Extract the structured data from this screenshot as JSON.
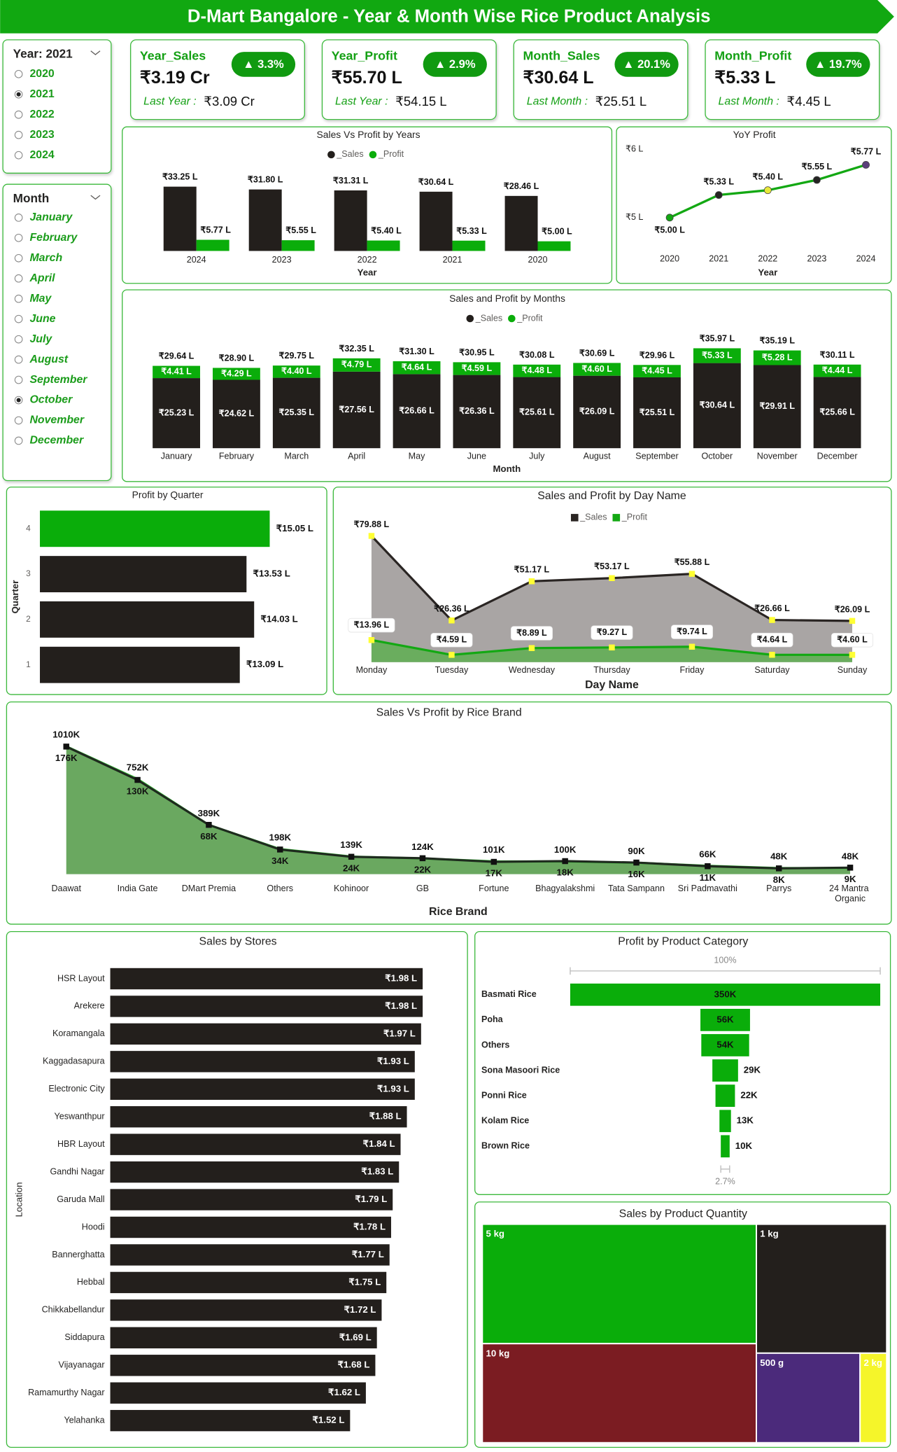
{
  "header": {
    "title": "D-Mart Bangalore - Year & Month Wise Rice Product Analysis"
  },
  "slicers": [
    {
      "title": "Year: 2021",
      "options": [
        "2020",
        "2021",
        "2022",
        "2023",
        "2024"
      ],
      "selected": 1
    },
    {
      "title": "Month",
      "options": [
        "January",
        "February",
        "March",
        "April",
        "May",
        "June",
        "July",
        "August",
        "September",
        "October",
        "November",
        "December"
      ],
      "selected": 9
    }
  ],
  "kpis": [
    {
      "title": "Year_Sales",
      "value": "₹3.19 Cr",
      "change": "▲ 3.3%",
      "compare_label": "Last Year :",
      "compare_value": "₹3.09 Cr"
    },
    {
      "title": "Year_Profit",
      "value": "₹55.70 L",
      "change": "▲ 2.9%",
      "compare_label": "Last Year :",
      "compare_value": "₹54.15 L"
    },
    {
      "title": "Month_Sales",
      "value": "₹30.64 L",
      "change": "▲ 20.1%",
      "compare_label": "Last Month :",
      "compare_value": "₹25.51 L"
    },
    {
      "title": "Month_Profit",
      "value": "₹5.33 L",
      "change": "▲ 19.7%",
      "compare_label": "Last Month :",
      "compare_value": "₹4.45 L"
    }
  ],
  "chart_data": [
    {
      "type": "bar",
      "title": "Sales Vs Profit by Years",
      "x_label": "Year",
      "categories": [
        "2024",
        "2023",
        "2022",
        "2021",
        "2020"
      ],
      "series": [
        {
          "name": "_Sales",
          "color": "#231f1c",
          "values": [
            33.25,
            31.8,
            31.31,
            30.64,
            28.46
          ],
          "value_labels": [
            "₹33.25 L",
            "₹31.80 L",
            "₹31.31 L",
            "₹30.64 L",
            "₹28.46 L"
          ]
        },
        {
          "name": "_Profit",
          "color": "#0aad0a",
          "values": [
            5.77,
            5.55,
            5.4,
            5.33,
            5.0
          ],
          "value_labels": [
            "₹5.77 L",
            "₹5.55 L",
            "₹5.40 L",
            "₹5.33 L",
            "₹5.00 L"
          ]
        }
      ],
      "ylim": [
        0,
        34
      ],
      "legend": "top",
      "legend_marker": "circle"
    },
    {
      "type": "line",
      "title": "YoY Profit",
      "x_label": "Year",
      "categories": [
        "2020",
        "2021",
        "2022",
        "2023",
        "2024"
      ],
      "values": [
        5.0,
        5.33,
        5.4,
        5.55,
        5.77
      ],
      "value_labels": [
        "₹5.00 L",
        "₹5.33 L",
        "₹5.40 L",
        "₹5.55 L",
        "₹5.77 L"
      ],
      "color": "#13a813",
      "marker_colors": [
        "#13a813",
        "#252423",
        "#e8e83a",
        "#252423",
        "#5a3f7a"
      ],
      "ylim": [
        4.5,
        6.0
      ],
      "yticks": [
        {
          "value": 6,
          "label": "₹6 L"
        },
        {
          "value": 5,
          "label": "₹5 L"
        }
      ]
    },
    {
      "type": "stacked_bar",
      "title": "Sales and Profit by Months",
      "x_label": "Month",
      "categories": [
        "January",
        "February",
        "March",
        "April",
        "May",
        "June",
        "July",
        "August",
        "September",
        "October",
        "November",
        "December"
      ],
      "series": [
        {
          "name": "_Sales",
          "color": "#231f1c",
          "values": [
            25.23,
            24.62,
            25.35,
            27.56,
            26.66,
            26.36,
            25.61,
            26.09,
            25.51,
            30.64,
            29.91,
            25.66
          ],
          "value_labels": [
            "₹25.23 L",
            "₹24.62 L",
            "₹25.35 L",
            "₹27.56 L",
            "₹26.66 L",
            "₹26.36 L",
            "₹25.61 L",
            "₹26.09 L",
            "₹25.51 L",
            "₹30.64 L",
            "₹29.91 L",
            "₹25.66 L"
          ]
        },
        {
          "name": "_Profit",
          "color": "#0aad0a",
          "values": [
            4.41,
            4.29,
            4.4,
            4.79,
            4.64,
            4.59,
            4.48,
            4.6,
            4.45,
            5.33,
            5.28,
            4.44
          ],
          "value_labels": [
            "₹4.41 L",
            "₹4.29 L",
            "₹4.40 L",
            "₹4.79 L",
            "₹4.64 L",
            "₹4.59 L",
            "₹4.48 L",
            "₹4.60 L",
            "₹4.45 L",
            "₹5.33 L",
            "₹5.28 L",
            "₹4.44 L"
          ]
        }
      ],
      "totals": [
        29.64,
        28.9,
        29.75,
        32.35,
        31.3,
        30.95,
        30.08,
        30.69,
        29.96,
        35.97,
        35.19,
        30.11
      ],
      "total_labels": [
        "₹29.64 L",
        "₹28.90 L",
        "₹29.75 L",
        "₹32.35 L",
        "₹31.30 L",
        "₹30.95 L",
        "₹30.08 L",
        "₹30.69 L",
        "₹29.96 L",
        "₹35.97 L",
        "₹35.19 L",
        "₹30.11 L"
      ],
      "ylim": [
        0,
        37
      ],
      "legend": "top",
      "legend_marker": "circle"
    },
    {
      "type": "hbar",
      "title": "Profit by Quarter",
      "y_label": "Quarter",
      "categories": [
        "4",
        "3",
        "2",
        "1"
      ],
      "values": [
        15.05,
        13.53,
        14.03,
        13.09
      ],
      "value_labels": [
        "₹15.05 L",
        "₹13.53 L",
        "₹14.03 L",
        "₹13.09 L"
      ],
      "colors": [
        "#0aad0a",
        "#231f1c",
        "#231f1c",
        "#231f1c"
      ],
      "xlim": [
        0,
        16
      ],
      "value_label_position": "outside"
    },
    {
      "type": "area",
      "title": "Sales and Profit by Day Name",
      "x_label": "Day Name",
      "categories": [
        "Monday",
        "Tuesday",
        "Wednesday",
        "Thursday",
        "Friday",
        "Saturday",
        "Sunday"
      ],
      "series": [
        {
          "name": "_Sales",
          "color": "#2a2523",
          "area_color": "#a9a5a4",
          "marker_color": "#ffff33",
          "label_position": "above",
          "values": [
            79.88,
            26.36,
            51.17,
            53.17,
            55.88,
            26.66,
            26.09
          ],
          "value_labels": [
            "₹79.88 L",
            "₹26.36 L",
            "₹51.17 L",
            "₹53.17 L",
            "₹55.88 L",
            "₹26.66 L",
            "₹26.09 L"
          ]
        },
        {
          "name": "_Profit",
          "color": "#13a813",
          "area_color": "#6aad5e",
          "marker_color": "#ffff33",
          "label_position": "box",
          "values": [
            13.96,
            4.59,
            8.89,
            9.27,
            9.74,
            4.64,
            4.6
          ],
          "value_labels": [
            "₹13.96 L",
            "₹4.59 L",
            "₹8.89 L",
            "₹9.27 L",
            "₹9.74 L",
            "₹4.64 L",
            "₹4.60 L"
          ]
        }
      ],
      "ylim": [
        0,
        85
      ],
      "legend": "top",
      "legend_marker": "square"
    },
    {
      "type": "area",
      "title": "Sales Vs Profit by Rice Brand",
      "x_label": "Rice Brand",
      "categories": [
        "Daawat",
        "India Gate",
        "DMart Premia",
        "Others",
        "Kohinoor",
        "GB",
        "Fortune",
        "Bhagyalakshmi",
        "Tata Sampann",
        "Sri Padmavathi",
        "Parrys",
        "24 Mantra Organic"
      ],
      "series": [
        {
          "color": "#3dbb3d",
          "area_color": "#6aa860",
          "label_position": "above",
          "values": [
            1010,
            752,
            389,
            198,
            139,
            124,
            101,
            100,
            90,
            66,
            48,
            48
          ],
          "value_labels": [
            "1010K",
            "752K",
            "389K",
            "198K",
            "139K",
            "124K",
            "101K",
            "100K",
            "90K",
            "66K",
            "48K",
            "48K"
          ]
        },
        {
          "color": "#1e2a1e",
          "marker_color": "#111111",
          "label_position": "below",
          "axis": "y2",
          "values": [
            176,
            130,
            68,
            34,
            24,
            22,
            17,
            18,
            16,
            11,
            8,
            9
          ],
          "value_labels": [
            "176K",
            "130K",
            "68K",
            "34K",
            "24K",
            "22K",
            "17K",
            "18K",
            "16K",
            "11K",
            "8K",
            "9K"
          ]
        }
      ],
      "ylim": [
        0,
        1100
      ],
      "y2lim": [
        0,
        192
      ]
    },
    {
      "type": "hbar",
      "title": "Sales by Stores",
      "y_label": "Location",
      "categories": [
        "HSR Layout",
        "Arekere",
        "Koramangala",
        "Kaggadasapura",
        "Electronic City",
        "Yeswanthpur",
        "HBR Layout",
        "Gandhi Nagar",
        "Garuda Mall",
        "Hoodi",
        "Bannerghatta",
        "Hebbal",
        "Chikkabellandur",
        "Siddapura",
        "Vijayanagar",
        "Ramamurthy Nagar",
        "Yelahanka"
      ],
      "values": [
        1.98,
        1.98,
        1.97,
        1.93,
        1.93,
        1.88,
        1.84,
        1.83,
        1.79,
        1.78,
        1.77,
        1.75,
        1.72,
        1.69,
        1.68,
        1.62,
        1.52
      ],
      "value_labels": [
        "₹1.98 L",
        "₹1.98 L",
        "₹1.97 L",
        "₹1.93 L",
        "₹1.93 L",
        "₹1.88 L",
        "₹1.84 L",
        "₹1.83 L",
        "₹1.79 L",
        "₹1.78 L",
        "₹1.77 L",
        "₹1.75 L",
        "₹1.72 L",
        "₹1.69 L",
        "₹1.68 L",
        "₹1.62 L",
        "₹1.52 L"
      ],
      "color": "#231f1c",
      "xlim": [
        0,
        2
      ],
      "value_label_position": "inside"
    },
    {
      "type": "funnel",
      "title": "Profit by Product Category",
      "categories": [
        "Basmati Rice",
        "Poha",
        "Others",
        "Sona Masoori Rice",
        "Ponni Rice",
        "Kolam Rice",
        "Brown Rice"
      ],
      "values": [
        350,
        56,
        54,
        29,
        22,
        13,
        10
      ],
      "value_labels": [
        "350K",
        "56K",
        "54K",
        "29K",
        "22K",
        "13K",
        "10K"
      ],
      "color": "#0aad0a",
      "top_label": "100%",
      "bottom_label": "2.7%"
    },
    {
      "type": "treemap",
      "title": "Sales by Product Quantity",
      "categories": [
        "5 kg",
        "10 kg",
        "1 kg",
        "500 g",
        "2 kg"
      ],
      "values": [
        37.0,
        30.7,
        19.0,
        10.5,
        2.7
      ],
      "colors": [
        "#0aad0a",
        "#7b1c22",
        "#231f1c",
        "#4b2a7b",
        "#f5f52a"
      ]
    }
  ]
}
